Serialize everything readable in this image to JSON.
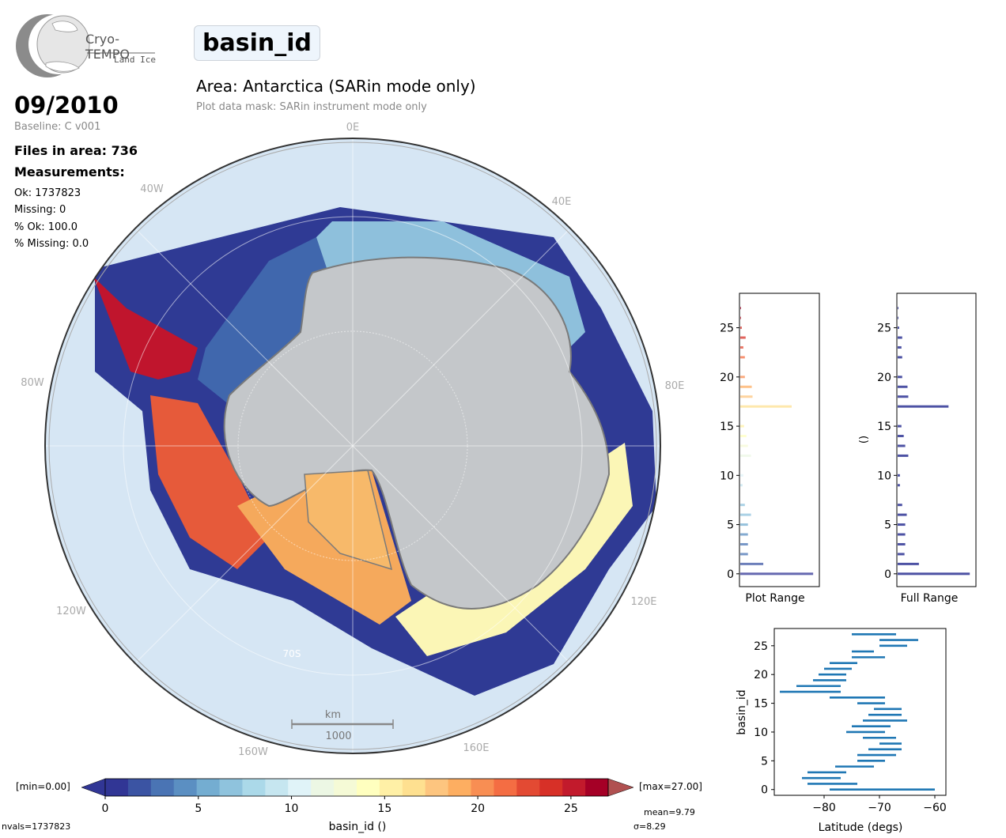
{
  "logo": {
    "brand": "Cryo-TEMPO",
    "product": "Land Ice"
  },
  "header": {
    "parameter": "basin_id",
    "area_title": "Area: Antarctica (SARin mode only)",
    "mask_note": "Plot data mask: SARin instrument mode only"
  },
  "info": {
    "date": "09/2010",
    "baseline": "Baseline: C v001",
    "files": "Files in area: 736",
    "measurements_label": "Measurements:",
    "ok": "Ok: 1737823",
    "missing": "Missing: 0",
    "pct_ok": "% Ok: 100.0",
    "pct_missing": "% Missing: 0.0"
  },
  "map": {
    "lon_labels": [
      "0E",
      "40E",
      "80E",
      "120E",
      "160E",
      "160W",
      "120W",
      "80W",
      "40W"
    ],
    "lat_label": "70S",
    "scalebar_unit": "km",
    "scalebar_value": "1000",
    "colors": {
      "ocean": "#d6e6f4",
      "ice": "#c4c7ca",
      "coast": "#7a7a7a"
    }
  },
  "colorbar": {
    "min_label": "[min=0.00]",
    "max_label": "[max=27.00]",
    "ticks": [
      "0",
      "5",
      "10",
      "15",
      "20",
      "25"
    ],
    "label": "basin_id ()",
    "nvals": "nvals=1737823",
    "mean": "mean=9.79",
    "sigma": "σ=8.29",
    "colors": [
      "#313695",
      "#3b54a3",
      "#4a74b4",
      "#5b8fc2",
      "#74add1",
      "#8fc3dd",
      "#abd9e9",
      "#c6e6f0",
      "#e0f3f8",
      "#ecf7e4",
      "#f5fad6",
      "#ffffbf",
      "#fff0a6",
      "#fee090",
      "#fdc57f",
      "#fdae61",
      "#f88e53",
      "#f46d43",
      "#e34a33",
      "#d73027",
      "#c21a2c",
      "#a50026"
    ]
  },
  "hist_plot": {
    "xlabel": "Plot Range",
    "yticks": [
      "0",
      "5",
      "10",
      "15",
      "20",
      "25"
    ],
    "bars": [
      [
        0,
        0.95
      ],
      [
        1,
        0.3
      ],
      [
        2,
        0.1
      ],
      [
        3,
        0.1
      ],
      [
        4,
        0.1
      ],
      [
        5,
        0.1
      ],
      [
        6,
        0.14
      ],
      [
        7,
        0.06
      ],
      [
        9,
        0.03
      ],
      [
        10,
        0.04
      ],
      [
        12,
        0.14
      ],
      [
        13,
        0.1
      ],
      [
        14,
        0.08
      ],
      [
        15,
        0.05
      ],
      [
        17,
        0.67
      ],
      [
        18,
        0.16
      ],
      [
        19,
        0.15
      ],
      [
        20,
        0.06
      ],
      [
        22,
        0.06
      ],
      [
        23,
        0.04
      ],
      [
        24,
        0.07
      ],
      [
        25,
        0.02
      ],
      [
        26,
        0.01
      ],
      [
        27,
        0.01
      ]
    ]
  },
  "hist_full": {
    "xlabel": "Full Range",
    "ylabel": "()",
    "yticks": [
      "0",
      "5",
      "10",
      "15",
      "20",
      "25"
    ],
    "bars": [
      [
        0,
        0.95
      ],
      [
        1,
        0.28
      ],
      [
        2,
        0.09
      ],
      [
        3,
        0.1
      ],
      [
        4,
        0.1
      ],
      [
        5,
        0.1
      ],
      [
        6,
        0.12
      ],
      [
        7,
        0.06
      ],
      [
        9,
        0.03
      ],
      [
        10,
        0.03
      ],
      [
        12,
        0.14
      ],
      [
        13,
        0.1
      ],
      [
        14,
        0.08
      ],
      [
        15,
        0.05
      ],
      [
        17,
        0.67
      ],
      [
        18,
        0.14
      ],
      [
        19,
        0.13
      ],
      [
        20,
        0.06
      ],
      [
        22,
        0.06
      ],
      [
        23,
        0.05
      ],
      [
        24,
        0.06
      ],
      [
        25,
        0.02
      ],
      [
        26,
        0.01
      ],
      [
        27,
        0.01
      ]
    ]
  },
  "chart_data": {
    "type": "scatter",
    "xlabel": "Latitude (degs)",
    "ylabel": "basin_id",
    "xlim": [
      -89,
      -58
    ],
    "ylim": [
      -1,
      28
    ],
    "xticks": [
      "−80",
      "−70",
      "−60"
    ],
    "yticks": [
      "0",
      "5",
      "10",
      "15",
      "20",
      "25"
    ],
    "ranges": [
      [
        0,
        -79,
        -60
      ],
      [
        1,
        -83,
        -74
      ],
      [
        2,
        -84,
        -77
      ],
      [
        3,
        -83,
        -76
      ],
      [
        4,
        -78,
        -71
      ],
      [
        5,
        -74,
        -69
      ],
      [
        6,
        -74,
        -67
      ],
      [
        7,
        -72,
        -66
      ],
      [
        8,
        -70,
        -66
      ],
      [
        9,
        -73,
        -67
      ],
      [
        10,
        -76,
        -69
      ],
      [
        11,
        -75,
        -68
      ],
      [
        12,
        -73,
        -65
      ],
      [
        13,
        -72,
        -66
      ],
      [
        14,
        -71,
        -66
      ],
      [
        15,
        -74,
        -69
      ],
      [
        16,
        -79,
        -69
      ],
      [
        17,
        -88,
        -77
      ],
      [
        18,
        -85,
        -77
      ],
      [
        19,
        -82,
        -76
      ],
      [
        20,
        -81,
        -76
      ],
      [
        21,
        -80,
        -75
      ],
      [
        22,
        -79,
        -74
      ],
      [
        23,
        -75,
        -69
      ],
      [
        24,
        -75,
        -71
      ],
      [
        25,
        -70,
        -65
      ],
      [
        26,
        -70,
        -63
      ],
      [
        27,
        -75,
        -67
      ]
    ]
  }
}
